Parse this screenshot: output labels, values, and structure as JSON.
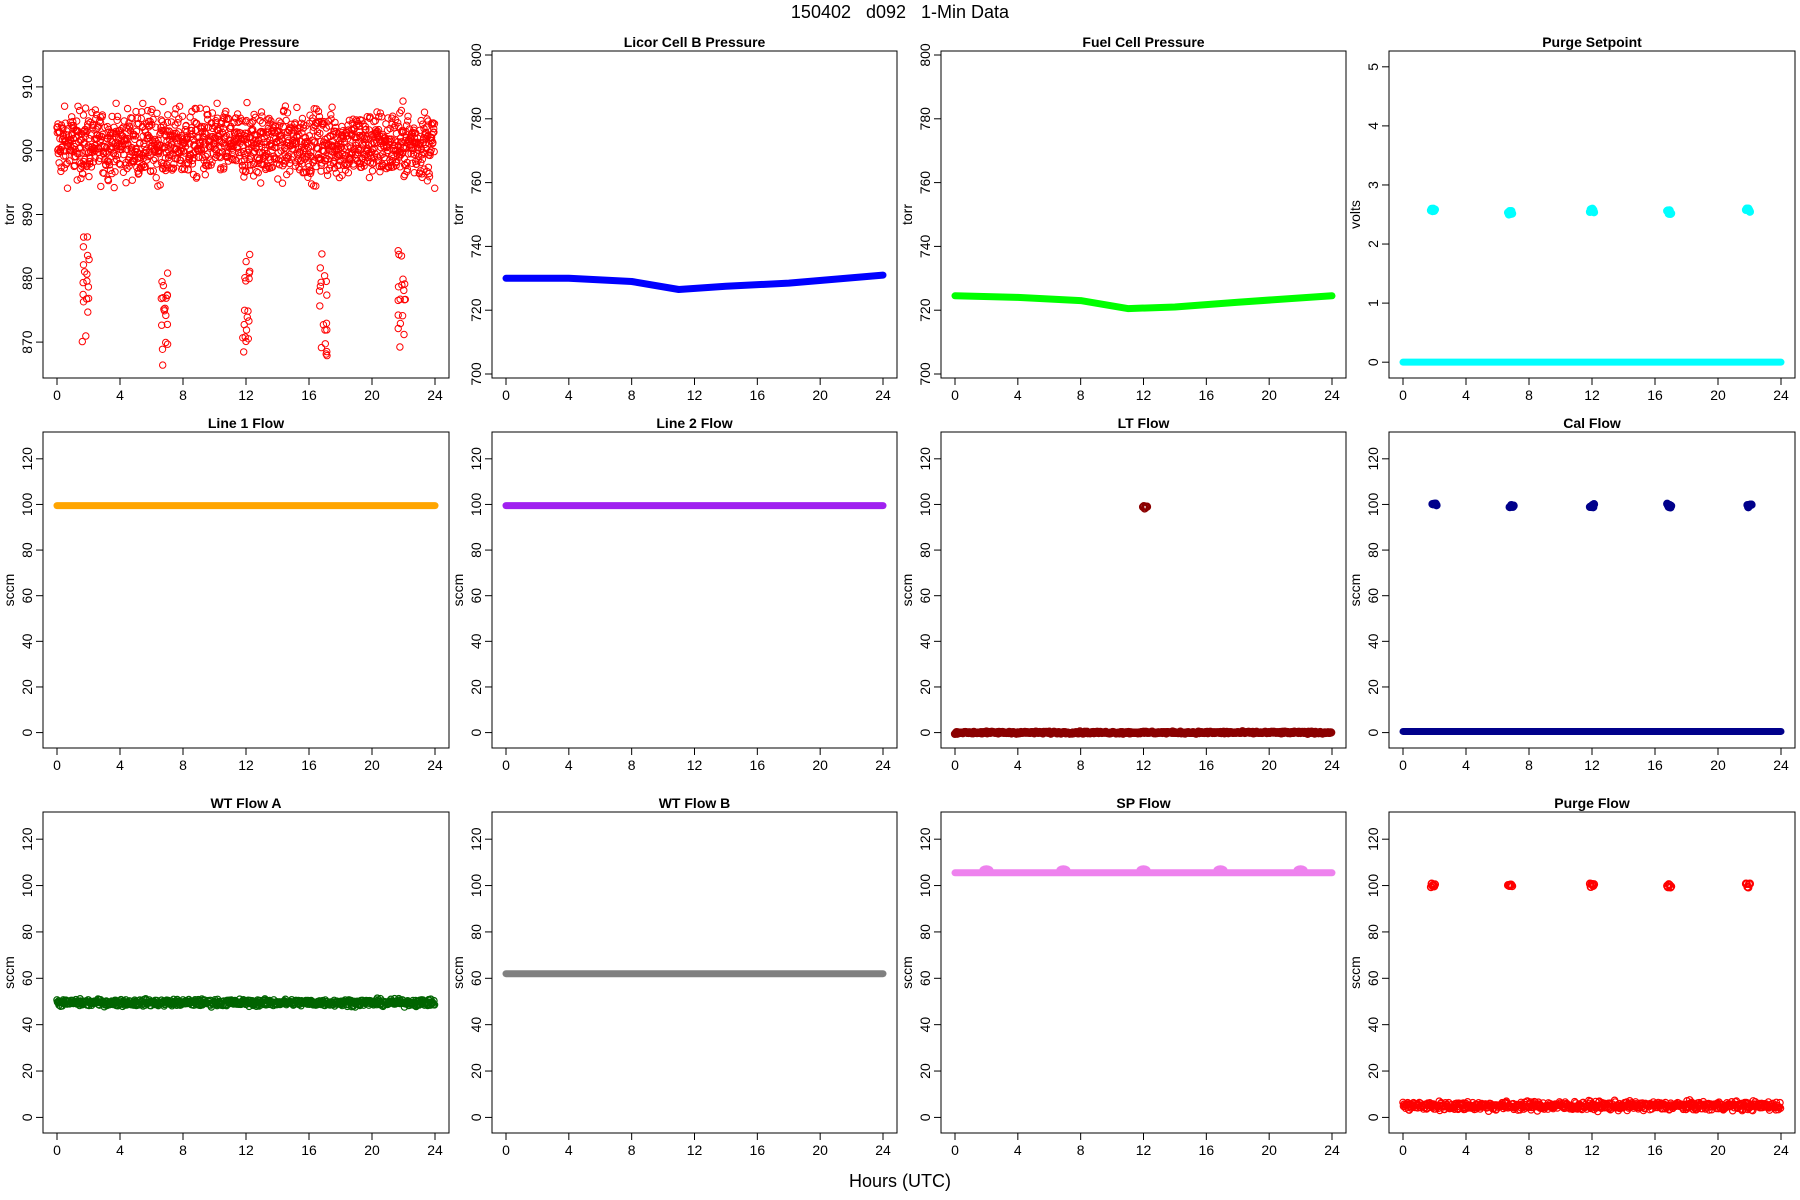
{
  "figure": {
    "title": "150402   d092   1-Min Data",
    "xlabel": "Hours (UTC)"
  },
  "chart_data": [
    {
      "type": "scatter",
      "title": "Fridge Pressure",
      "ylabel": "torr",
      "color": "#ff0000",
      "filled": false,
      "xlim": [
        0,
        24
      ],
      "ylim": [
        865,
        915
      ],
      "xticks": [
        0,
        4,
        8,
        12,
        16,
        20,
        24
      ],
      "yticks": [
        870,
        880,
        890,
        900,
        910
      ],
      "pattern": "noisy_scatter",
      "baseline": 901,
      "noise": 5,
      "spikes": [
        {
          "x": 1.8,
          "min": 870
        },
        {
          "x": 6.8,
          "min": 866
        },
        {
          "x": 12.0,
          "min": 867
        },
        {
          "x": 16.9,
          "min": 867
        },
        {
          "x": 21.9,
          "min": 869
        }
      ]
    },
    {
      "type": "line",
      "title": "Licor Cell B Pressure",
      "ylabel": "torr",
      "color": "#0000ff",
      "xlim": [
        0,
        24
      ],
      "ylim": [
        700,
        800
      ],
      "xticks": [
        0,
        4,
        8,
        12,
        16,
        20,
        24
      ],
      "yticks": [
        700,
        720,
        740,
        760,
        780,
        800
      ],
      "points": [
        [
          0,
          730
        ],
        [
          4,
          730
        ],
        [
          8,
          729
        ],
        [
          11,
          726.5
        ],
        [
          14,
          727.5
        ],
        [
          18,
          728.5
        ],
        [
          24,
          731
        ]
      ]
    },
    {
      "type": "line",
      "title": "Fuel Cell Pressure",
      "ylabel": "torr",
      "color": "#00ff00",
      "xlim": [
        0,
        24
      ],
      "ylim": [
        700,
        800
      ],
      "xticks": [
        0,
        4,
        8,
        12,
        16,
        20,
        24
      ],
      "yticks": [
        700,
        720,
        740,
        760,
        780,
        800
      ],
      "points": [
        [
          0,
          724.5
        ],
        [
          4,
          724
        ],
        [
          8,
          723
        ],
        [
          11,
          720.5
        ],
        [
          14,
          721
        ],
        [
          18,
          722.5
        ],
        [
          24,
          724.5
        ]
      ]
    },
    {
      "type": "scatter",
      "title": "Purge Setpoint",
      "ylabel": "volts",
      "color": "#00ffff",
      "xlim": [
        0,
        24
      ],
      "ylim": [
        -0.2,
        5.2
      ],
      "xticks": [
        0,
        4,
        8,
        12,
        16,
        20,
        24
      ],
      "yticks": [
        0,
        1,
        2,
        3,
        4,
        5
      ],
      "baseline": 0,
      "events": [
        {
          "x": 1.9,
          "y": 2.57
        },
        {
          "x": 6.8,
          "y": 2.53
        },
        {
          "x": 12.0,
          "y": 2.57
        },
        {
          "x": 16.9,
          "y": 2.54
        },
        {
          "x": 21.9,
          "y": 2.57
        }
      ]
    },
    {
      "type": "line",
      "title": "Line 1 Flow",
      "ylabel": "sccm",
      "color": "#ffa500",
      "xlim": [
        0,
        24
      ],
      "ylim": [
        -5,
        130
      ],
      "xticks": [
        0,
        4,
        8,
        12,
        16,
        20,
        24
      ],
      "yticks": [
        0,
        20,
        40,
        60,
        80,
        100,
        120
      ],
      "points": [
        [
          0,
          99.5
        ],
        [
          24,
          99.5
        ]
      ]
    },
    {
      "type": "line",
      "title": "Line 2 Flow",
      "ylabel": "sccm",
      "color": "#a020f0",
      "xlim": [
        0,
        24
      ],
      "ylim": [
        -5,
        130
      ],
      "xticks": [
        0,
        4,
        8,
        12,
        16,
        20,
        24
      ],
      "yticks": [
        0,
        20,
        40,
        60,
        80,
        100,
        120
      ],
      "points": [
        [
          0,
          99.5
        ],
        [
          24,
          99.5
        ]
      ]
    },
    {
      "type": "scatter",
      "title": "LT Flow",
      "ylabel": "sccm",
      "color": "#8b0000",
      "filled": false,
      "xlim": [
        0,
        24
      ],
      "ylim": [
        -5,
        130
      ],
      "xticks": [
        0,
        4,
        8,
        12,
        16,
        20,
        24
      ],
      "yticks": [
        0,
        20,
        40,
        60,
        80,
        100,
        120
      ],
      "baseline": 0,
      "events": [
        {
          "x": 12.1,
          "y": 99
        }
      ]
    },
    {
      "type": "scatter",
      "title": "Cal Flow",
      "ylabel": "sccm",
      "color": "#00008b",
      "xlim": [
        0,
        24
      ],
      "ylim": [
        -5,
        130
      ],
      "xticks": [
        0,
        4,
        8,
        12,
        16,
        20,
        24
      ],
      "yticks": [
        0,
        20,
        40,
        60,
        80,
        100,
        120
      ],
      "baseline": 0.5,
      "events": [
        {
          "x": 2.0,
          "y": 99.5
        },
        {
          "x": 6.9,
          "y": 99.5
        },
        {
          "x": 12.0,
          "y": 99.5
        },
        {
          "x": 16.9,
          "y": 99.5
        },
        {
          "x": 22.0,
          "y": 99.5
        }
      ]
    },
    {
      "type": "scatter",
      "title": "WT Flow A",
      "ylabel": "sccm",
      "color": "#006400",
      "filled": false,
      "xlim": [
        0,
        24
      ],
      "ylim": [
        -5,
        130
      ],
      "xticks": [
        0,
        4,
        8,
        12,
        16,
        20,
        24
      ],
      "yticks": [
        0,
        20,
        40,
        60,
        80,
        100,
        120
      ],
      "baseline": 49.5,
      "band": 3
    },
    {
      "type": "line",
      "title": "WT Flow B",
      "ylabel": "sccm",
      "color": "#808080",
      "xlim": [
        0,
        24
      ],
      "ylim": [
        -5,
        130
      ],
      "xticks": [
        0,
        4,
        8,
        12,
        16,
        20,
        24
      ],
      "yticks": [
        0,
        20,
        40,
        60,
        80,
        100,
        120
      ],
      "points": [
        [
          0,
          62
        ],
        [
          24,
          62
        ]
      ]
    },
    {
      "type": "line",
      "title": "SP Flow",
      "ylabel": "sccm",
      "color": "#ee82ee",
      "xlim": [
        0,
        24
      ],
      "ylim": [
        -5,
        130
      ],
      "xticks": [
        0,
        4,
        8,
        12,
        16,
        20,
        24
      ],
      "yticks": [
        0,
        20,
        40,
        60,
        80,
        100,
        120
      ],
      "points": [
        [
          0,
          105.5
        ],
        [
          24,
          105.5
        ]
      ],
      "bumps": [
        2.0,
        6.9,
        12.0,
        16.9,
        22.0
      ],
      "bump_y": 106.8
    },
    {
      "type": "scatter",
      "title": "Purge Flow",
      "ylabel": "sccm",
      "color": "#ff0000",
      "filled": false,
      "xlim": [
        0,
        24
      ],
      "ylim": [
        -5,
        130
      ],
      "xticks": [
        0,
        4,
        8,
        12,
        16,
        20,
        24
      ],
      "yticks": [
        0,
        20,
        40,
        60,
        80,
        100,
        120
      ],
      "baseline": 5,
      "band": 4,
      "events": [
        {
          "x": 1.9,
          "y": 100
        },
        {
          "x": 6.8,
          "y": 100
        },
        {
          "x": 12.0,
          "y": 100
        },
        {
          "x": 16.9,
          "y": 100
        },
        {
          "x": 21.9,
          "y": 100
        }
      ]
    }
  ]
}
